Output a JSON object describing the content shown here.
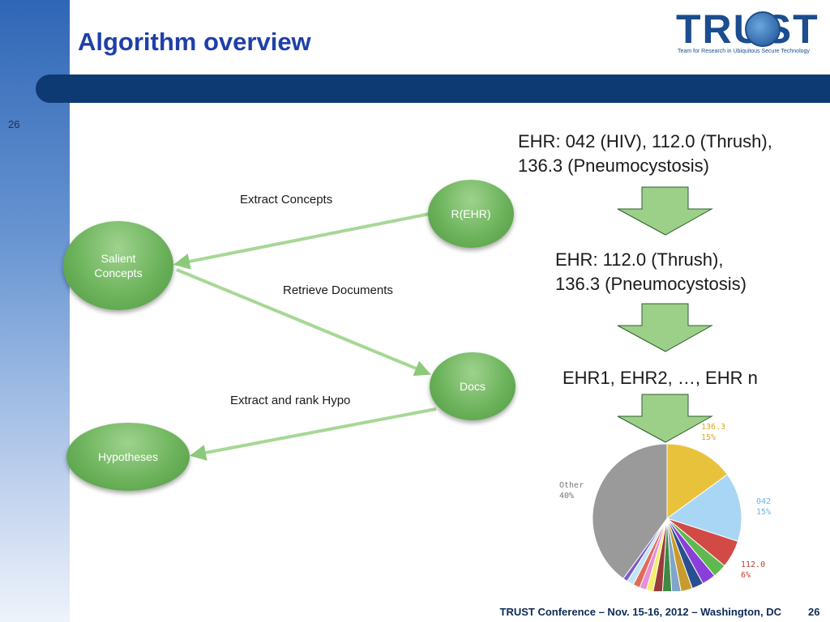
{
  "slide": {
    "title": "Algorithm overview",
    "page_number": "26",
    "footer": "TRUST Conference – Nov. 15-16, 2012 – Washington, DC",
    "colors": {
      "title": "#1f3fa8",
      "header_bar": "#0d3a73",
      "node_green": "#6db35c",
      "arrow_green": "#a6d895"
    }
  },
  "logo": {
    "text": "TRUST",
    "subtitle": "Team for Research in Ubiquitous Secure Technology"
  },
  "diagram": {
    "nodes": {
      "rehr": "R(EHR)",
      "salient_line1": "Salient",
      "salient_line2": "Concepts",
      "docs": "Docs",
      "hypotheses": "Hypotheses"
    },
    "edges": {
      "extract_concepts": "Extract Concepts",
      "retrieve_documents": "Retrieve Documents",
      "extract_rank": "Extract and rank Hypo"
    }
  },
  "steps": {
    "step1_line1": "EHR: 042 (HIV), 112.0 (Thrush),",
    "step1_line2": "136.3 (Pneumocystosis)",
    "step2_line1": "EHR: 112.0 (Thrush),",
    "step2_line2": "136.3 (Pneumocystosis)",
    "step3": "EHR1, EHR2, …, EHR n"
  },
  "chart_data": {
    "type": "pie",
    "slices": [
      {
        "name": "136.3",
        "value": 15,
        "label": "15%",
        "color": "#e9c23c"
      },
      {
        "name": "042",
        "value": 15,
        "label": "15%",
        "color": "#a9d6f5"
      },
      {
        "name": "112.0",
        "value": 6,
        "label": "6%",
        "color": "#d24a45"
      },
      {
        "name": "",
        "value": 3,
        "color": "#5fb94f"
      },
      {
        "name": "",
        "value": 3,
        "color": "#8a3fd8"
      },
      {
        "name": "",
        "value": 2.5,
        "color": "#2a4f8f"
      },
      {
        "name": "",
        "value": 2.5,
        "color": "#c89b2c"
      },
      {
        "name": "",
        "value": 2,
        "color": "#7fa6c9"
      },
      {
        "name": "",
        "value": 2,
        "color": "#3e8a43"
      },
      {
        "name": "",
        "value": 2,
        "color": "#9a3b3b"
      },
      {
        "name": "",
        "value": 1.5,
        "color": "#f2ef6a"
      },
      {
        "name": "",
        "value": 1.5,
        "color": "#e98ed8"
      },
      {
        "name": "",
        "value": 1.5,
        "color": "#e36a5a"
      },
      {
        "name": "",
        "value": 1.5,
        "color": "#bfe6f7"
      },
      {
        "name": "",
        "value": 1,
        "color": "#7b5cc9"
      },
      {
        "name": "Other",
        "value": 40,
        "label": "40%",
        "color": "#9a9a9a"
      }
    ]
  }
}
